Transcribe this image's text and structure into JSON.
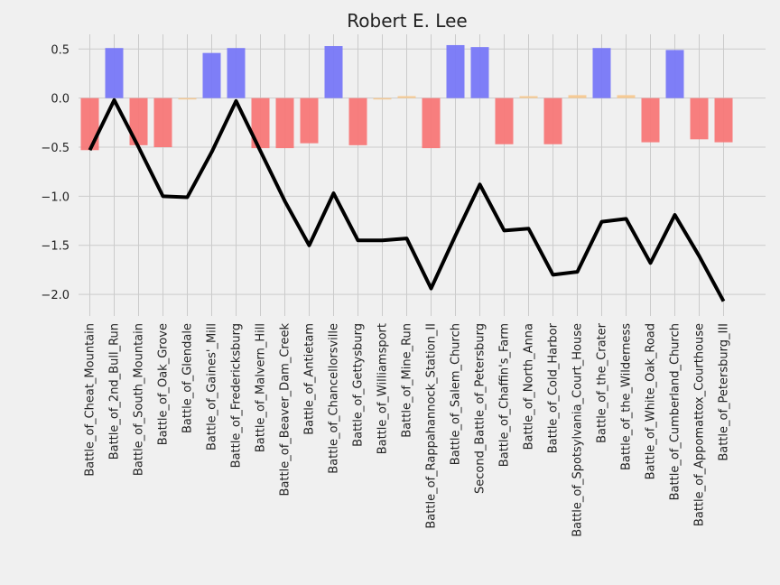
{
  "chart_data": {
    "type": "bar",
    "title": "Robert E. Lee",
    "xlabel": "",
    "ylabel": "",
    "ylim": [
      -2.22,
      0.65
    ],
    "yticks": [
      0.5,
      0.0,
      -0.5,
      -1.0,
      -1.5,
      -2.0
    ],
    "ytick_labels": [
      "0.5",
      "0.0",
      "−0.5",
      "−1.0",
      "−1.5",
      "−2.0"
    ],
    "grid": true,
    "colors": {
      "positive": "#7777f7",
      "negative": "#f77777",
      "neutral": "#f5c890",
      "line": "#000000",
      "background": "#f0f0f0",
      "grid": "#cbcbcb"
    },
    "categories": [
      "Battle_of_Cheat_Mountain",
      "Battle_of_2nd_Bull_Run",
      "Battle_of_South_Mountain",
      "Battle_of_Oak_Grove",
      "Battle_of_Glendale",
      "Battle_of_Gaines'_Mill",
      "Battle_of_Fredericksburg",
      "Battle_of_Malvern_Hill",
      "Battle_of_Beaver_Dam_Creek",
      "Battle_of_Antietam",
      "Battle_of_Chancellorsville",
      "Battle_of_Gettysburg",
      "Battle_of_Williamsport",
      "Battle_of_Mine_Run",
      "Battle_of_Rappahannock_Station_II",
      "Battle_of_Salem_Church",
      "Second_Battle_of_Petersburg",
      "Battle_of_Chaffin's_Farm",
      "Battle_of_North_Anna",
      "Battle_of_Cold_Harbor",
      "Battle_of_Spotsylvania_Court_House",
      "Battle_of_the_Crater",
      "Battle_of_the_Wilderness",
      "Battle_of_White_Oak_Road",
      "Battle_of_Cumberland_Church",
      "Battle_of_Appomattox_Courthouse",
      "Battle_of_Petersburg_III"
    ],
    "series": [
      {
        "type": "bar",
        "values": [
          -0.53,
          0.51,
          -0.48,
          -0.5,
          -0.01,
          0.46,
          0.51,
          -0.51,
          -0.51,
          -0.46,
          0.53,
          -0.48,
          0.0,
          0.02,
          -0.51,
          0.54,
          0.52,
          -0.47,
          0.02,
          -0.47,
          0.03,
          0.51,
          0.03,
          -0.45,
          0.49,
          -0.42,
          -0.45
        ]
      },
      {
        "type": "line",
        "values": [
          -0.53,
          -0.02,
          -0.5,
          -1.0,
          -1.01,
          -0.55,
          -0.03,
          -0.54,
          -1.05,
          -1.5,
          -0.97,
          -1.45,
          -1.45,
          -1.43,
          -1.94,
          -1.4,
          -0.88,
          -1.35,
          -1.33,
          -1.8,
          -1.77,
          -1.26,
          -1.23,
          -1.68,
          -1.19,
          -1.61,
          -2.07
        ]
      }
    ]
  }
}
